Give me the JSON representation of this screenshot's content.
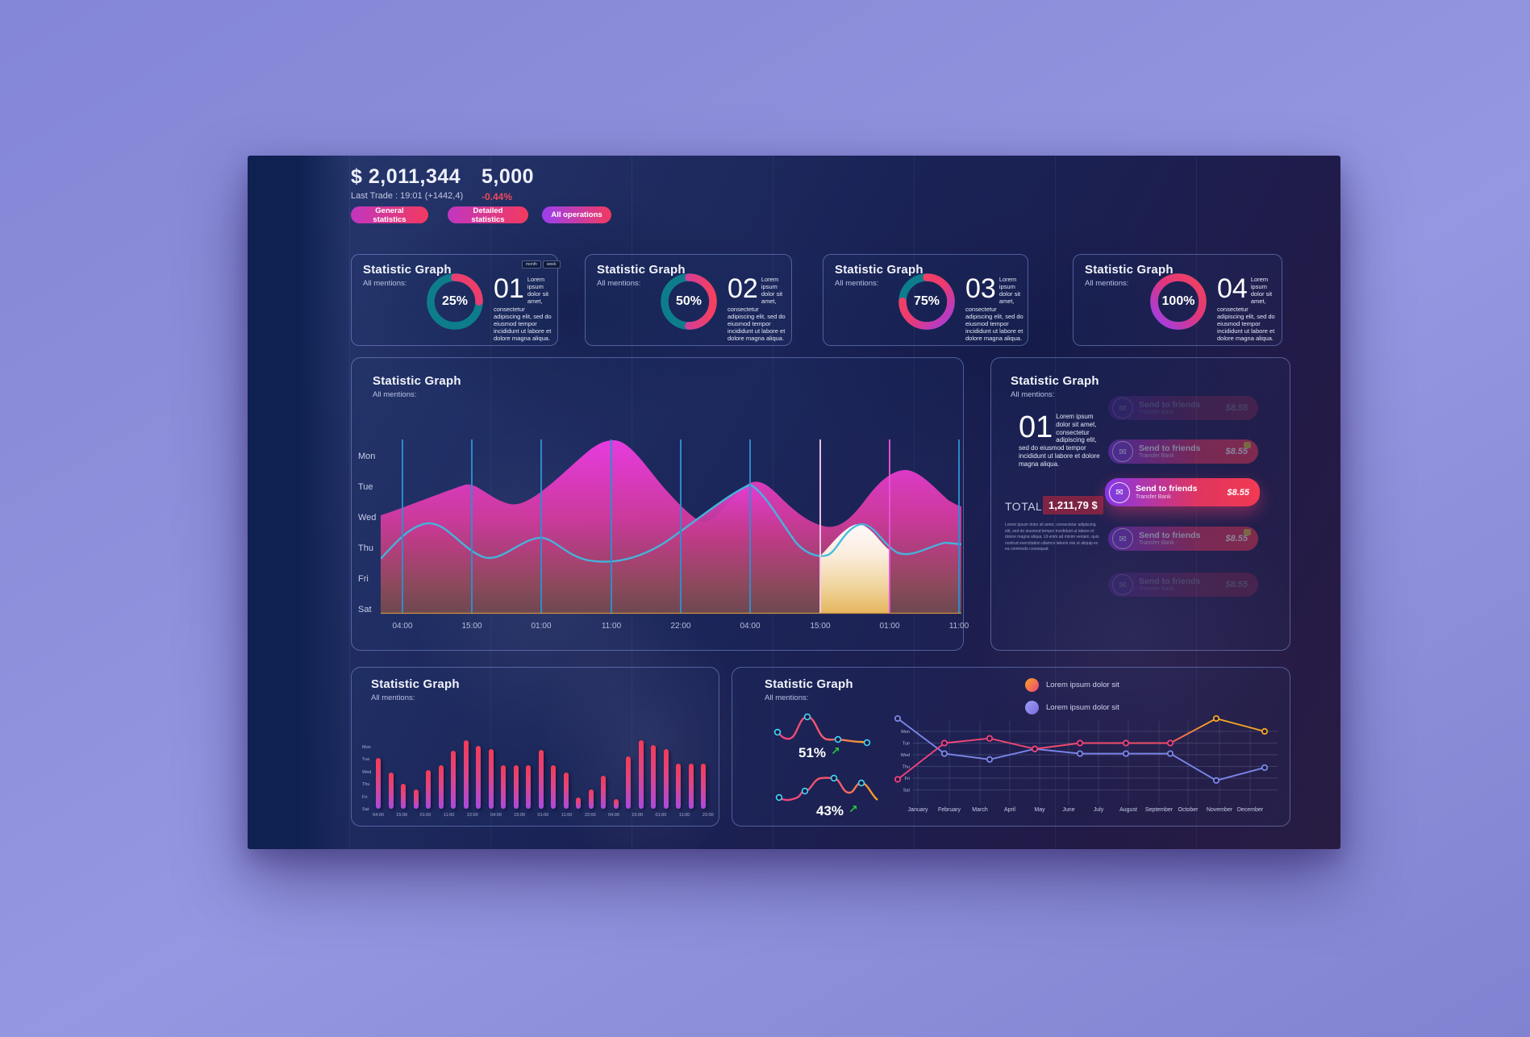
{
  "header": {
    "balance": "$ 2,011,344",
    "balance_caption": "Last Trade : 19:01 (+1442,4)",
    "volume": "5,000",
    "volume_change": "-0.44%",
    "buttons": [
      {
        "label": "General statistics"
      },
      {
        "label": "Detailed statistics"
      },
      {
        "label": "All operations"
      }
    ]
  },
  "donut_cards": [
    {
      "title": "Statistic Graph",
      "subtitle": "All mentions:",
      "number": "01",
      "percent_label": "25%",
      "percent": 25,
      "description": "Lorem ipsum dolor sit amet, consectetur adipiscing elit, sed do eiusmod tempor incididunt ut labore et dolore magna aliqua.",
      "toggle": [
        "month",
        "week"
      ]
    },
    {
      "title": "Statistic Graph",
      "subtitle": "All mentions:",
      "number": "02",
      "percent_label": "50%",
      "percent": 50,
      "description": "Lorem ipsum dolor sit amet, consectetur adipiscing elit, sed do eiusmod tempor incididunt ut labore et dolore magna aliqua."
    },
    {
      "title": "Statistic Graph",
      "subtitle": "All mentions:",
      "number": "03",
      "percent_label": "75%",
      "percent": 75,
      "description": "Lorem ipsum dolor sit amet, consectetur adipiscing elit, sed do eiusmod tempor incididunt ut labore et dolore magna aliqua."
    },
    {
      "title": "Statistic Graph",
      "subtitle": "All mentions:",
      "number": "04",
      "percent_label": "100%",
      "percent": 100,
      "description": "Lorem ipsum dolor sit amet, consectetur adipiscing elit, sed do eiusmod tempor incididunt ut labore et dolore magna aliqua."
    }
  ],
  "main_chart": {
    "title": "Statistic Graph",
    "subtitle": "All mentions:",
    "days": [
      "Mon",
      "Tue",
      "Wed",
      "Thu",
      "Fri",
      "Sat"
    ],
    "times": [
      "04:00",
      "15:00",
      "01:00",
      "11:00",
      "22:00",
      "04:00",
      "15:00",
      "01:00",
      "11:00"
    ]
  },
  "transfers": {
    "title": "Statistic Graph",
    "subtitle": "All mentions:",
    "number": "01",
    "description": "Lorem ipsum dolor sit amet, consectetur adipiscing elit, sed do eiusmod tempor incididunt ut labore et dolore magna aliqua.",
    "total_label": "TOTAL:",
    "total_value": "1,211,79 $",
    "fine_print": "Lorem ipsum dolor sit amet, consectetur adipiscing elit, sed do eiusmod tempor incididunt ut labore et dolore magna aliqua. Ut enim ad minim veniam, quis nostrud exercitation ullamco laboris nisi ut aliquip ex ea commodo consequat.",
    "rows": [
      {
        "label": "Send to friends",
        "sublabel": "Transfer Bank",
        "amount": "$8.55",
        "state": "ghost",
        "badge": false
      },
      {
        "label": "Send to friends",
        "sublabel": "Transfer Bank",
        "amount": "$8.55",
        "state": "dim",
        "badge": true
      },
      {
        "label": "Send to friends",
        "sublabel": "Transfer Bank",
        "amount": "$8.55",
        "state": "active",
        "badge": false
      },
      {
        "label": "Send to friends",
        "sublabel": "Transfer Bank",
        "amount": "$8.55",
        "state": "dim",
        "badge": true
      },
      {
        "label": "Send to friends",
        "sublabel": "Transfer Bank",
        "amount": "$8.55",
        "state": "ghost",
        "badge": false
      }
    ]
  },
  "bar_chart": {
    "title": "Statistic Graph",
    "subtitle": "All mentions:",
    "days": [
      "Mon",
      "Tue",
      "Wed",
      "Thu",
      "Fri",
      "Sat"
    ],
    "times": [
      "04:00",
      "15:00",
      "01:00",
      "11:00",
      "22:00",
      "04:00",
      "15:00",
      "01:00",
      "11:00",
      "22:00",
      "04:00",
      "15:00",
      "01:00",
      "11:00",
      "22:00"
    ],
    "values": [
      74,
      53,
      37,
      28,
      57,
      64,
      85,
      100,
      92,
      87,
      64,
      64,
      64,
      86,
      64,
      53,
      16,
      28,
      48,
      14,
      76,
      100,
      93,
      87,
      66,
      66,
      66
    ]
  },
  "trend_chart": {
    "title": "Statistic Graph",
    "subtitle": "All mentions:",
    "spark1": {
      "percent": "51%",
      "direction": "up"
    },
    "spark2": {
      "percent": "43%",
      "direction": "up"
    },
    "legend": [
      {
        "label": "Lorem ipsum dolor sit",
        "color1": "#f5a623",
        "color2": "#f0417c"
      },
      {
        "label": "Lorem ipsum dolor sit",
        "color1": "#8a94f0",
        "color2": "#7a68e0"
      }
    ],
    "days": [
      "Mon",
      "Tue",
      "Wed",
      "Thu",
      "Fri",
      "Sat"
    ],
    "months": [
      "January",
      "February",
      "March",
      "April",
      "May",
      "June",
      "July",
      "August",
      "September",
      "October",
      "November",
      "December"
    ],
    "series": [
      {
        "name": "series-pink",
        "values": [
          0.9,
          4.0,
          4.4,
          3.5,
          4.0,
          4.0,
          4.0,
          6.1,
          5.0
        ]
      },
      {
        "name": "series-blue",
        "values": [
          6.1,
          3.1,
          2.6,
          3.5,
          3.1,
          3.1,
          3.1,
          0.8,
          1.9
        ]
      }
    ]
  },
  "colors": {
    "teal": "#0d7d8c",
    "pink": "#ef2d6c",
    "purple": "#9b3ff0",
    "cyan": "#35d0f0",
    "orange": "#f5a623",
    "green": "#27c840",
    "red": "#e8445a",
    "yellow": "#e6c23c",
    "blue_line": "#7a86e8"
  }
}
